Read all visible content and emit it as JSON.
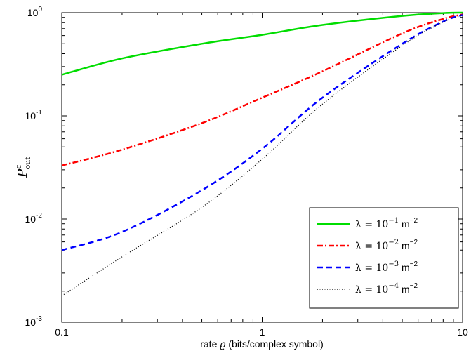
{
  "chart_data": {
    "type": "line",
    "xscale": "log",
    "yscale": "log",
    "xlim": [
      0.1,
      10
    ],
    "ylim": [
      0.001,
      1
    ],
    "x_ticks": [
      0.1,
      1,
      10
    ],
    "x_tick_labels": [
      "0.1",
      "1",
      "10"
    ],
    "y_ticks": [
      0.001,
      0.01,
      0.1,
      1
    ],
    "y_tick_labels": [
      {
        "base": "10",
        "exp": "-3"
      },
      {
        "base": "10",
        "exp": "-2"
      },
      {
        "base": "10",
        "exp": "-1"
      },
      {
        "base": "10",
        "exp": "0"
      }
    ],
    "xlabel": {
      "pre": "rate ",
      "sym": "ϱ",
      "post": " (bits/complex symbol)"
    },
    "ylabel": {
      "main": "P",
      "sup": "c",
      "sub": "out"
    },
    "grid": false,
    "legend_position": "bottom-right",
    "series": [
      {
        "name": {
          "lhs": "λ = 10",
          "exp": "−1",
          "unit": " m",
          "uexp": "−2"
        },
        "color": "#00dd00",
        "style": "solid",
        "x": [
          0.1,
          0.2,
          0.5,
          1,
          2,
          5,
          8,
          10
        ],
        "y": [
          0.25,
          0.36,
          0.5,
          0.61,
          0.76,
          0.93,
          0.99,
          1.0
        ]
      },
      {
        "name": {
          "lhs": "λ = 10",
          "exp": "−2",
          "unit": " m",
          "uexp": "−2"
        },
        "color": "#ff0000",
        "style": "dashdot",
        "x": [
          0.1,
          0.2,
          0.5,
          1,
          2,
          5,
          8,
          10
        ],
        "y": [
          0.033,
          0.047,
          0.085,
          0.15,
          0.27,
          0.63,
          0.87,
          0.96
        ]
      },
      {
        "name": {
          "lhs": "λ = 10",
          "exp": "−3",
          "unit": " m",
          "uexp": "−2"
        },
        "color": "#0000ff",
        "style": "dashed",
        "x": [
          0.1,
          0.2,
          0.5,
          1,
          2,
          5,
          8,
          10
        ],
        "y": [
          0.005,
          0.0075,
          0.019,
          0.048,
          0.15,
          0.5,
          0.82,
          0.95
        ]
      },
      {
        "name": {
          "lhs": "λ = 10",
          "exp": "−4",
          "unit": " m",
          "uexp": "−2"
        },
        "color": "#000000",
        "style": "dotted",
        "x": [
          0.1,
          0.2,
          0.5,
          1,
          2,
          5,
          8,
          10
        ],
        "y": [
          0.0018,
          0.0043,
          0.013,
          0.038,
          0.13,
          0.48,
          0.81,
          0.94
        ]
      }
    ]
  }
}
